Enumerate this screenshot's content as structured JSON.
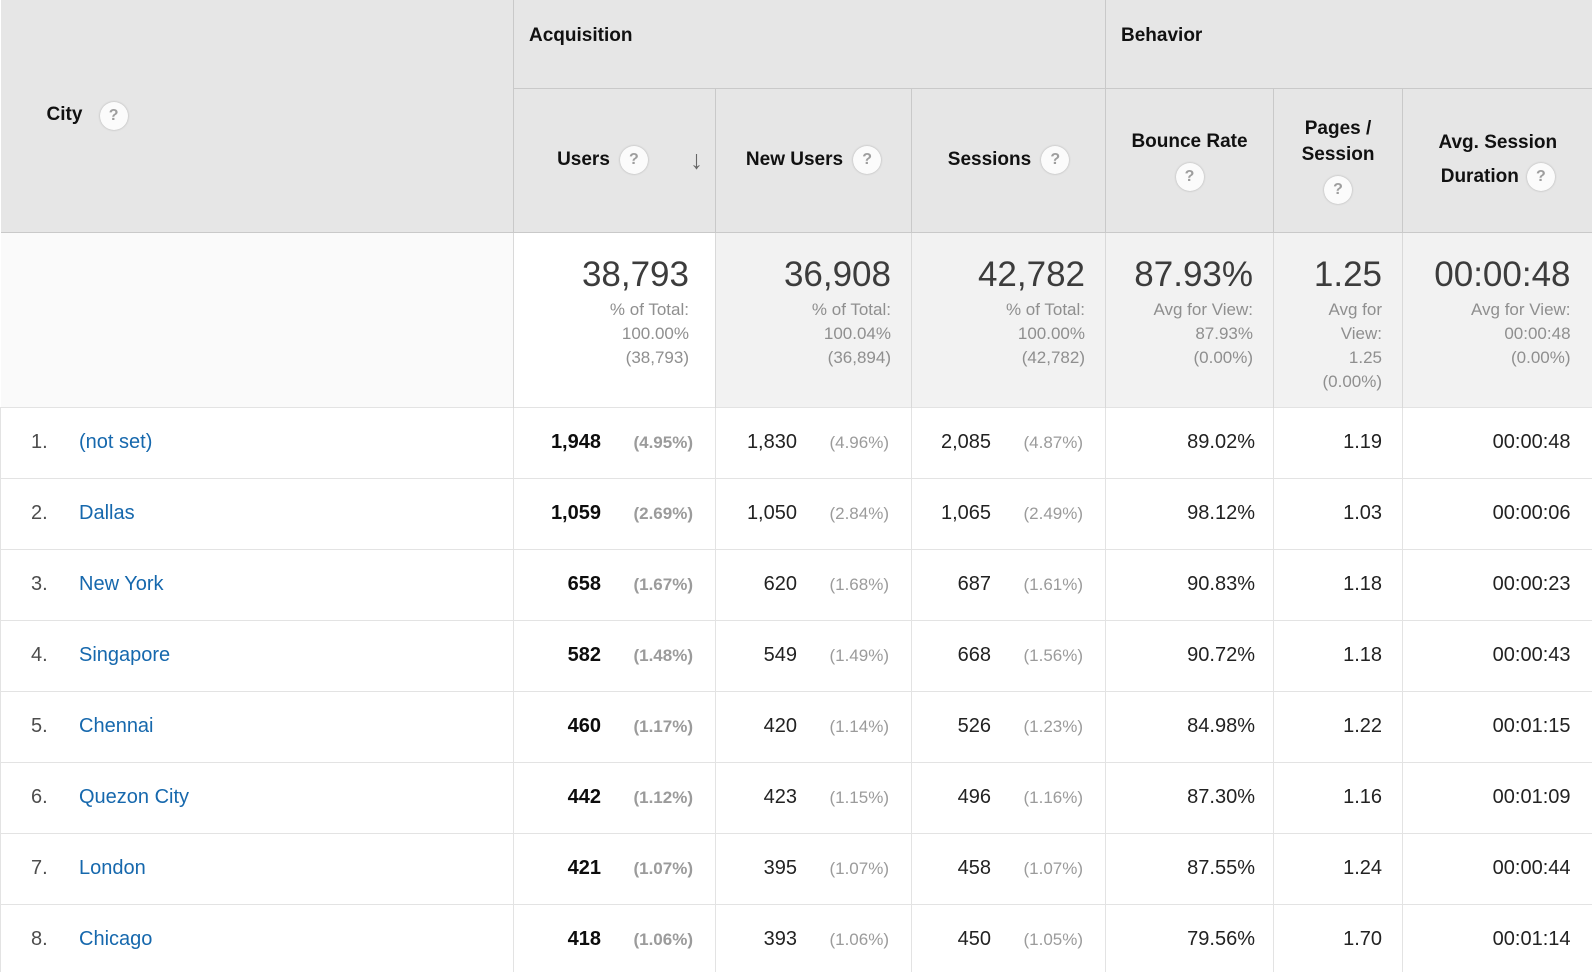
{
  "icons": {
    "help_glyph": "?",
    "sort_desc_glyph": "↓"
  },
  "table": {
    "dimension_header": {
      "label": "City"
    },
    "groups": [
      {
        "label": "Acquisition"
      },
      {
        "label": "Behavior"
      }
    ],
    "columns": [
      {
        "label": "Users",
        "sorted": "desc"
      },
      {
        "label": "New Users"
      },
      {
        "label": "Sessions"
      },
      {
        "label": "Bounce Rate"
      },
      {
        "label": "Pages / Session"
      },
      {
        "label": "Avg. Session Duration"
      }
    ],
    "summary": {
      "users": {
        "value": "38,793",
        "sub": [
          "% of Total:",
          "100.00%",
          "(38,793)"
        ]
      },
      "new_users": {
        "value": "36,908",
        "sub": [
          "% of Total:",
          "100.04%",
          "(36,894)"
        ]
      },
      "sessions": {
        "value": "42,782",
        "sub": [
          "% of Total:",
          "100.00%",
          "(42,782)"
        ]
      },
      "bounce": {
        "value": "87.93%",
        "sub": [
          "Avg for View:",
          "87.93%",
          "(0.00%)"
        ]
      },
      "pages": {
        "value": "1.25",
        "sub": [
          "Avg for",
          "View:",
          "1.25",
          "(0.00%)"
        ]
      },
      "duration": {
        "value": "00:00:48",
        "sub": [
          "Avg for View:",
          "00:00:48",
          "(0.00%)"
        ]
      }
    },
    "rows": [
      {
        "index": "1.",
        "city": "(not set)",
        "users": "1,948",
        "users_pct": "(4.95%)",
        "new_users": "1,830",
        "new_users_pct": "(4.96%)",
        "sessions": "2,085",
        "sessions_pct": "(4.87%)",
        "bounce": "89.02%",
        "pages": "1.19",
        "duration": "00:00:48"
      },
      {
        "index": "2.",
        "city": "Dallas",
        "users": "1,059",
        "users_pct": "(2.69%)",
        "new_users": "1,050",
        "new_users_pct": "(2.84%)",
        "sessions": "1,065",
        "sessions_pct": "(2.49%)",
        "bounce": "98.12%",
        "pages": "1.03",
        "duration": "00:00:06"
      },
      {
        "index": "3.",
        "city": "New York",
        "users": "658",
        "users_pct": "(1.67%)",
        "new_users": "620",
        "new_users_pct": "(1.68%)",
        "sessions": "687",
        "sessions_pct": "(1.61%)",
        "bounce": "90.83%",
        "pages": "1.18",
        "duration": "00:00:23"
      },
      {
        "index": "4.",
        "city": "Singapore",
        "users": "582",
        "users_pct": "(1.48%)",
        "new_users": "549",
        "new_users_pct": "(1.49%)",
        "sessions": "668",
        "sessions_pct": "(1.56%)",
        "bounce": "90.72%",
        "pages": "1.18",
        "duration": "00:00:43"
      },
      {
        "index": "5.",
        "city": "Chennai",
        "users": "460",
        "users_pct": "(1.17%)",
        "new_users": "420",
        "new_users_pct": "(1.14%)",
        "sessions": "526",
        "sessions_pct": "(1.23%)",
        "bounce": "84.98%",
        "pages": "1.22",
        "duration": "00:01:15"
      },
      {
        "index": "6.",
        "city": "Quezon City",
        "users": "442",
        "users_pct": "(1.12%)",
        "new_users": "423",
        "new_users_pct": "(1.15%)",
        "sessions": "496",
        "sessions_pct": "(1.16%)",
        "bounce": "87.30%",
        "pages": "1.16",
        "duration": "00:01:09"
      },
      {
        "index": "7.",
        "city": "London",
        "users": "421",
        "users_pct": "(1.07%)",
        "new_users": "395",
        "new_users_pct": "(1.07%)",
        "sessions": "458",
        "sessions_pct": "(1.07%)",
        "bounce": "87.55%",
        "pages": "1.24",
        "duration": "00:00:44"
      },
      {
        "index": "8.",
        "city": "Chicago",
        "users": "418",
        "users_pct": "(1.06%)",
        "new_users": "393",
        "new_users_pct": "(1.06%)",
        "sessions": "450",
        "sessions_pct": "(1.05%)",
        "bounce": "79.56%",
        "pages": "1.70",
        "duration": "00:01:14"
      }
    ]
  }
}
